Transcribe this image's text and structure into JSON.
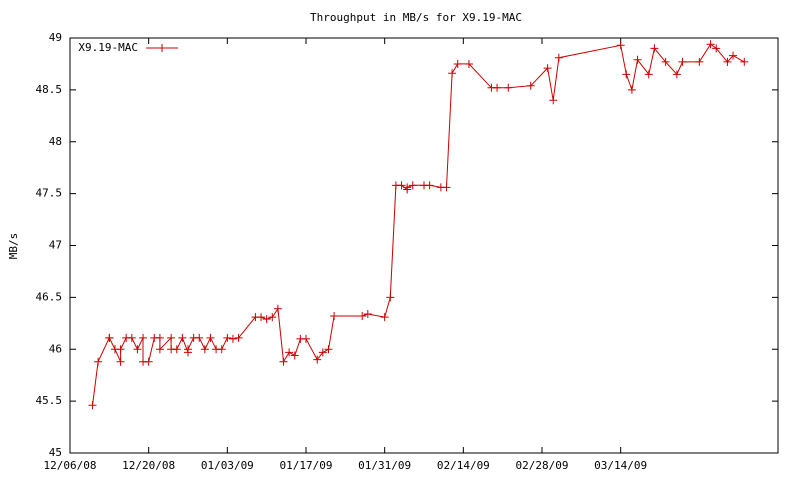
{
  "chart_data": {
    "type": "line",
    "title": "Throughput in MB/s for X9.19-MAC",
    "y_label": "MB/s",
    "x": [
      "2008-12-10",
      "2008-12-11",
      "2008-12-13",
      "2008-12-13",
      "2008-12-14",
      "2008-12-15",
      "2008-12-15",
      "2008-12-16",
      "2008-12-17",
      "2008-12-18",
      "2008-12-19",
      "2008-12-19",
      "2008-12-20",
      "2008-12-21",
      "2008-12-22",
      "2008-12-22",
      "2008-12-24",
      "2008-12-24",
      "2008-12-25",
      "2008-12-26",
      "2008-12-27",
      "2008-12-27",
      "2008-12-28",
      "2008-12-29",
      "2008-12-30",
      "2008-12-31",
      "2009-01-01",
      "2009-01-02",
      "2009-01-03",
      "2009-01-04",
      "2009-01-05",
      "2009-01-08",
      "2009-01-09",
      "2009-01-10",
      "2009-01-11",
      "2009-01-12",
      "2009-01-13",
      "2009-01-14",
      "2009-01-15",
      "2009-01-16",
      "2009-01-17",
      "2009-01-19",
      "2009-01-20",
      "2009-01-21",
      "2009-01-22",
      "2009-01-27",
      "2009-01-28",
      "2009-01-31",
      "2009-02-01",
      "2009-02-02",
      "2009-02-03",
      "2009-02-04",
      "2009-02-04",
      "2009-02-05",
      "2009-02-07",
      "2009-02-08",
      "2009-02-10",
      "2009-02-11",
      "2009-02-12",
      "2009-02-13",
      "2009-02-15",
      "2009-02-19",
      "2009-02-20",
      "2009-02-22",
      "2009-02-26",
      "2009-03-01",
      "2009-03-02",
      "2009-03-03",
      "2009-03-14",
      "2009-03-15",
      "2009-03-16",
      "2009-03-17",
      "2009-03-19",
      "2009-03-20",
      "2009-03-22",
      "2009-03-24",
      "2009-03-25",
      "2009-03-28",
      "2009-03-30",
      "2009-03-31",
      "2009-04-02",
      "2009-04-03",
      "2009-04-05"
    ],
    "series": [
      {
        "name": "X9.19-MAC",
        "color": "#cc0000",
        "values": [
          45.46,
          45.88,
          46.11,
          46.11,
          46.0,
          45.88,
          46.0,
          46.11,
          46.11,
          46.0,
          46.11,
          45.88,
          45.88,
          46.11,
          46.11,
          46.0,
          46.11,
          46.0,
          46.0,
          46.11,
          45.97,
          46.0,
          46.11,
          46.11,
          46.0,
          46.11,
          46.0,
          46.0,
          46.11,
          46.1,
          46.11,
          46.31,
          46.31,
          46.29,
          46.31,
          46.39,
          45.88,
          45.97,
          45.94,
          46.1,
          46.1,
          45.9,
          45.97,
          46.0,
          46.32,
          46.32,
          46.34,
          46.31,
          46.5,
          47.58,
          47.58,
          47.54,
          47.56,
          47.58,
          47.58,
          47.58,
          47.56,
          47.56,
          48.66,
          48.75,
          48.75,
          48.52,
          48.52,
          48.52,
          48.54,
          48.71,
          48.4,
          48.81,
          48.93,
          48.65,
          48.5,
          48.79,
          48.65,
          48.9,
          48.77,
          48.65,
          48.77,
          48.77,
          48.94,
          48.9,
          48.77,
          48.83,
          48.77
        ]
      }
    ],
    "xlim": [
      "2008-12-06",
      "2009-04-11"
    ],
    "xticks": [
      {
        "value": "2008-12-06",
        "label": "12/06/08"
      },
      {
        "value": "2008-12-20",
        "label": "12/20/08"
      },
      {
        "value": "2009-01-03",
        "label": "01/03/09"
      },
      {
        "value": "2009-01-17",
        "label": "01/17/09"
      },
      {
        "value": "2009-01-31",
        "label": "01/31/09"
      },
      {
        "value": "2009-02-14",
        "label": "02/14/09"
      },
      {
        "value": "2009-02-28",
        "label": "02/28/09"
      },
      {
        "value": "2009-03-14",
        "label": "03/14/09"
      }
    ],
    "ylim": [
      45,
      49
    ],
    "yticks": [
      45,
      45.5,
      46,
      46.5,
      47,
      47.5,
      48,
      48.5,
      49
    ],
    "legend": "top-left"
  }
}
